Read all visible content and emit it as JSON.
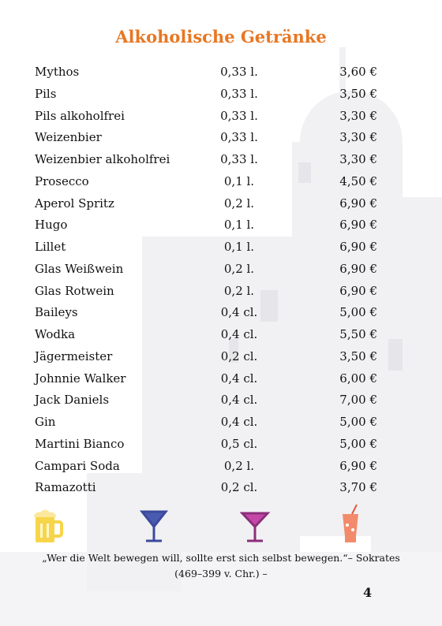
{
  "title": "Alkoholische Getränke",
  "items": [
    {
      "name": "Mythos",
      "size": "0,33 l.",
      "price": "3,60 €"
    },
    {
      "name": "Pils",
      "size": "0,33 l.",
      "price": "3,50 €"
    },
    {
      "name": "Pils alkoholfrei",
      "size": "0,33 l.",
      "price": "3,30 €"
    },
    {
      "name": "Weizenbier",
      "size": "0,33 l.",
      "price": "3,30 €"
    },
    {
      "name": "Weizenbier alkoholfrei",
      "size": "0,33 l.",
      "price": "3,30 €"
    },
    {
      "name": "Prosecco",
      "size": "0,1 l.",
      "price": "4,50 €"
    },
    {
      "name": "Aperol Spritz",
      "size": "0,2 l.",
      "price": "6,90 €"
    },
    {
      "name": "Hugo",
      "size": "0,1 l.",
      "price": "6,90 €"
    },
    {
      "name": "Lillet",
      "size": "0,1 l.",
      "price": "6,90 €"
    },
    {
      "name": "Glas Weißwein",
      "size": "0,2 l.",
      "price": "6,90 €"
    },
    {
      "name": "Glas Rotwein",
      "size": "0,2 l.",
      "price": "6,90 €"
    },
    {
      "name": "Baileys",
      "size": "0,4 cl.",
      "price": "5,00 €"
    },
    {
      "name": "Wodka",
      "size": "0,4 cl.",
      "price": "5,50 €"
    },
    {
      "name": "Jägermeister",
      "size": "0,2 cl.",
      "price": "3,50 €"
    },
    {
      "name": "Johnnie Walker",
      "size": "0,4 cl.",
      "price": "6,00 €"
    },
    {
      "name": "Jack Daniels",
      "size": "0,4 cl.",
      "price": "7,00 €"
    },
    {
      "name": "Gin",
      "size": "0,4 cl.",
      "price": "5,00 €"
    },
    {
      "name": "Martini Bianco",
      "size": "0,5 cl.",
      "price": "5,00 €"
    },
    {
      "name": "Campari Soda",
      "size": "0,2 l.",
      "price": "6,90 €"
    },
    {
      "name": "Ramazotti",
      "size": "0,2 cl.",
      "price": "3,70 €"
    }
  ],
  "quote": "„Wer die Welt bewegen will, sollte erst sich selbst bewegen.“– Sokrates (469–399 v. Chr.) –",
  "page_number": "4"
}
